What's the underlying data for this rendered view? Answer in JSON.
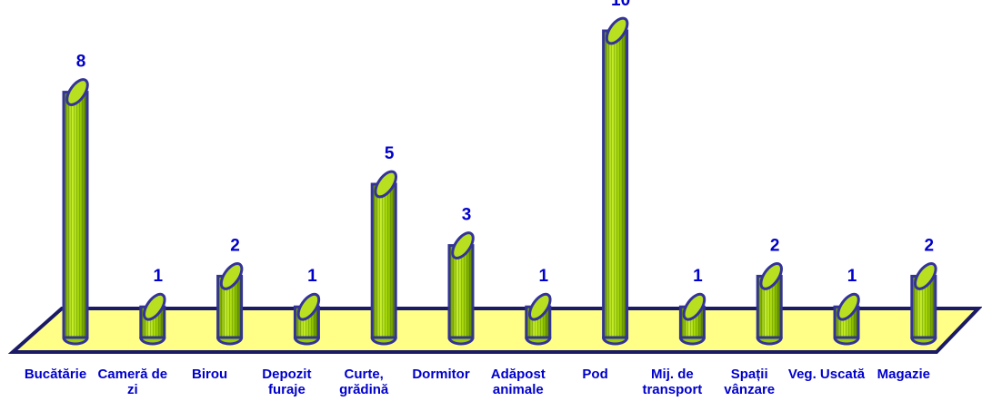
{
  "chart_data": {
    "type": "bar",
    "categories": [
      "Bucătărie",
      "Cameră de zi",
      "Birou",
      "Depozit furaje",
      "Curte, grădină",
      "Dormitor",
      "Adăpost animale",
      "Pod",
      "Mij. de transport",
      "Spații vânzare",
      "Veg. Uscată",
      "Magazie"
    ],
    "values": [
      8,
      1,
      2,
      1,
      5,
      3,
      1,
      10,
      1,
      2,
      1,
      2
    ],
    "color": "#99cc00"
  }
}
